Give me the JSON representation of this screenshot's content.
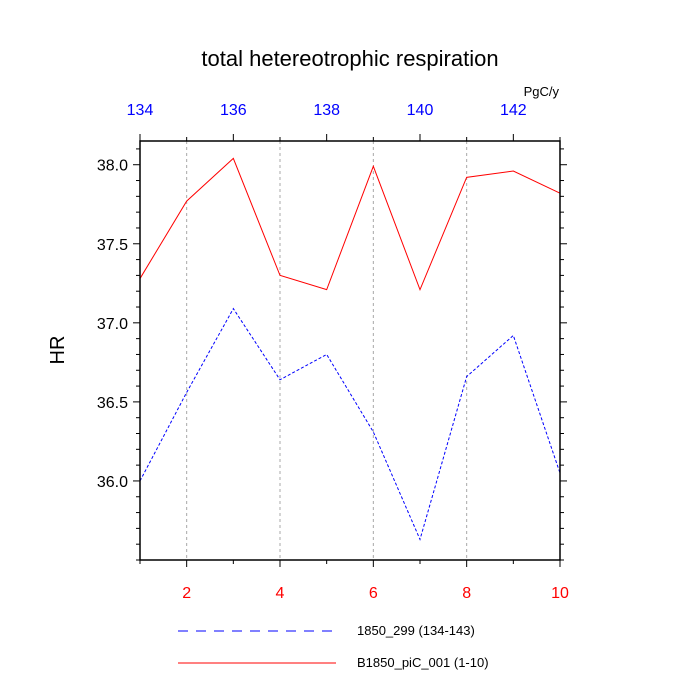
{
  "chart_data": {
    "type": "line",
    "title": "total hetereotrophic respiration",
    "ylabel": "HR",
    "units": "PgC/y",
    "ylim": [
      35.5,
      38.15
    ],
    "bottom_axis": {
      "range": [
        1,
        10
      ],
      "ticks": [
        2,
        4,
        6,
        8,
        10
      ],
      "color": "#ff0000"
    },
    "top_axis": {
      "range": [
        134,
        143
      ],
      "ticks": [
        134,
        136,
        138,
        140,
        142
      ],
      "color": "#0000ff"
    },
    "y_ticks": [
      "36.0",
      "36.5",
      "37.0",
      "37.5",
      "38.0"
    ],
    "grid": "vertical dashed at major ticks",
    "series": [
      {
        "name": "B1850_piC_001 (1-10)",
        "color": "#ff0000",
        "dash": "solid",
        "x": [
          1,
          2,
          3,
          4,
          5,
          6,
          7,
          8,
          9,
          10
        ],
        "values": [
          37.28,
          37.77,
          38.04,
          37.3,
          37.21,
          37.99,
          37.21,
          37.92,
          37.96,
          37.82
        ]
      },
      {
        "name": "1850_299 (134-143)",
        "color": "#0000ff",
        "dash": "dashed",
        "x": [
          134,
          135,
          136,
          137,
          138,
          139,
          140,
          141,
          142,
          143
        ],
        "values": [
          36.0,
          36.56,
          37.09,
          36.64,
          36.8,
          36.31,
          35.63,
          36.66,
          36.92,
          36.05
        ]
      }
    ],
    "legend_order": [
      "1850_299 (134-143)",
      "B1850_piC_001 (1-10)"
    ]
  }
}
